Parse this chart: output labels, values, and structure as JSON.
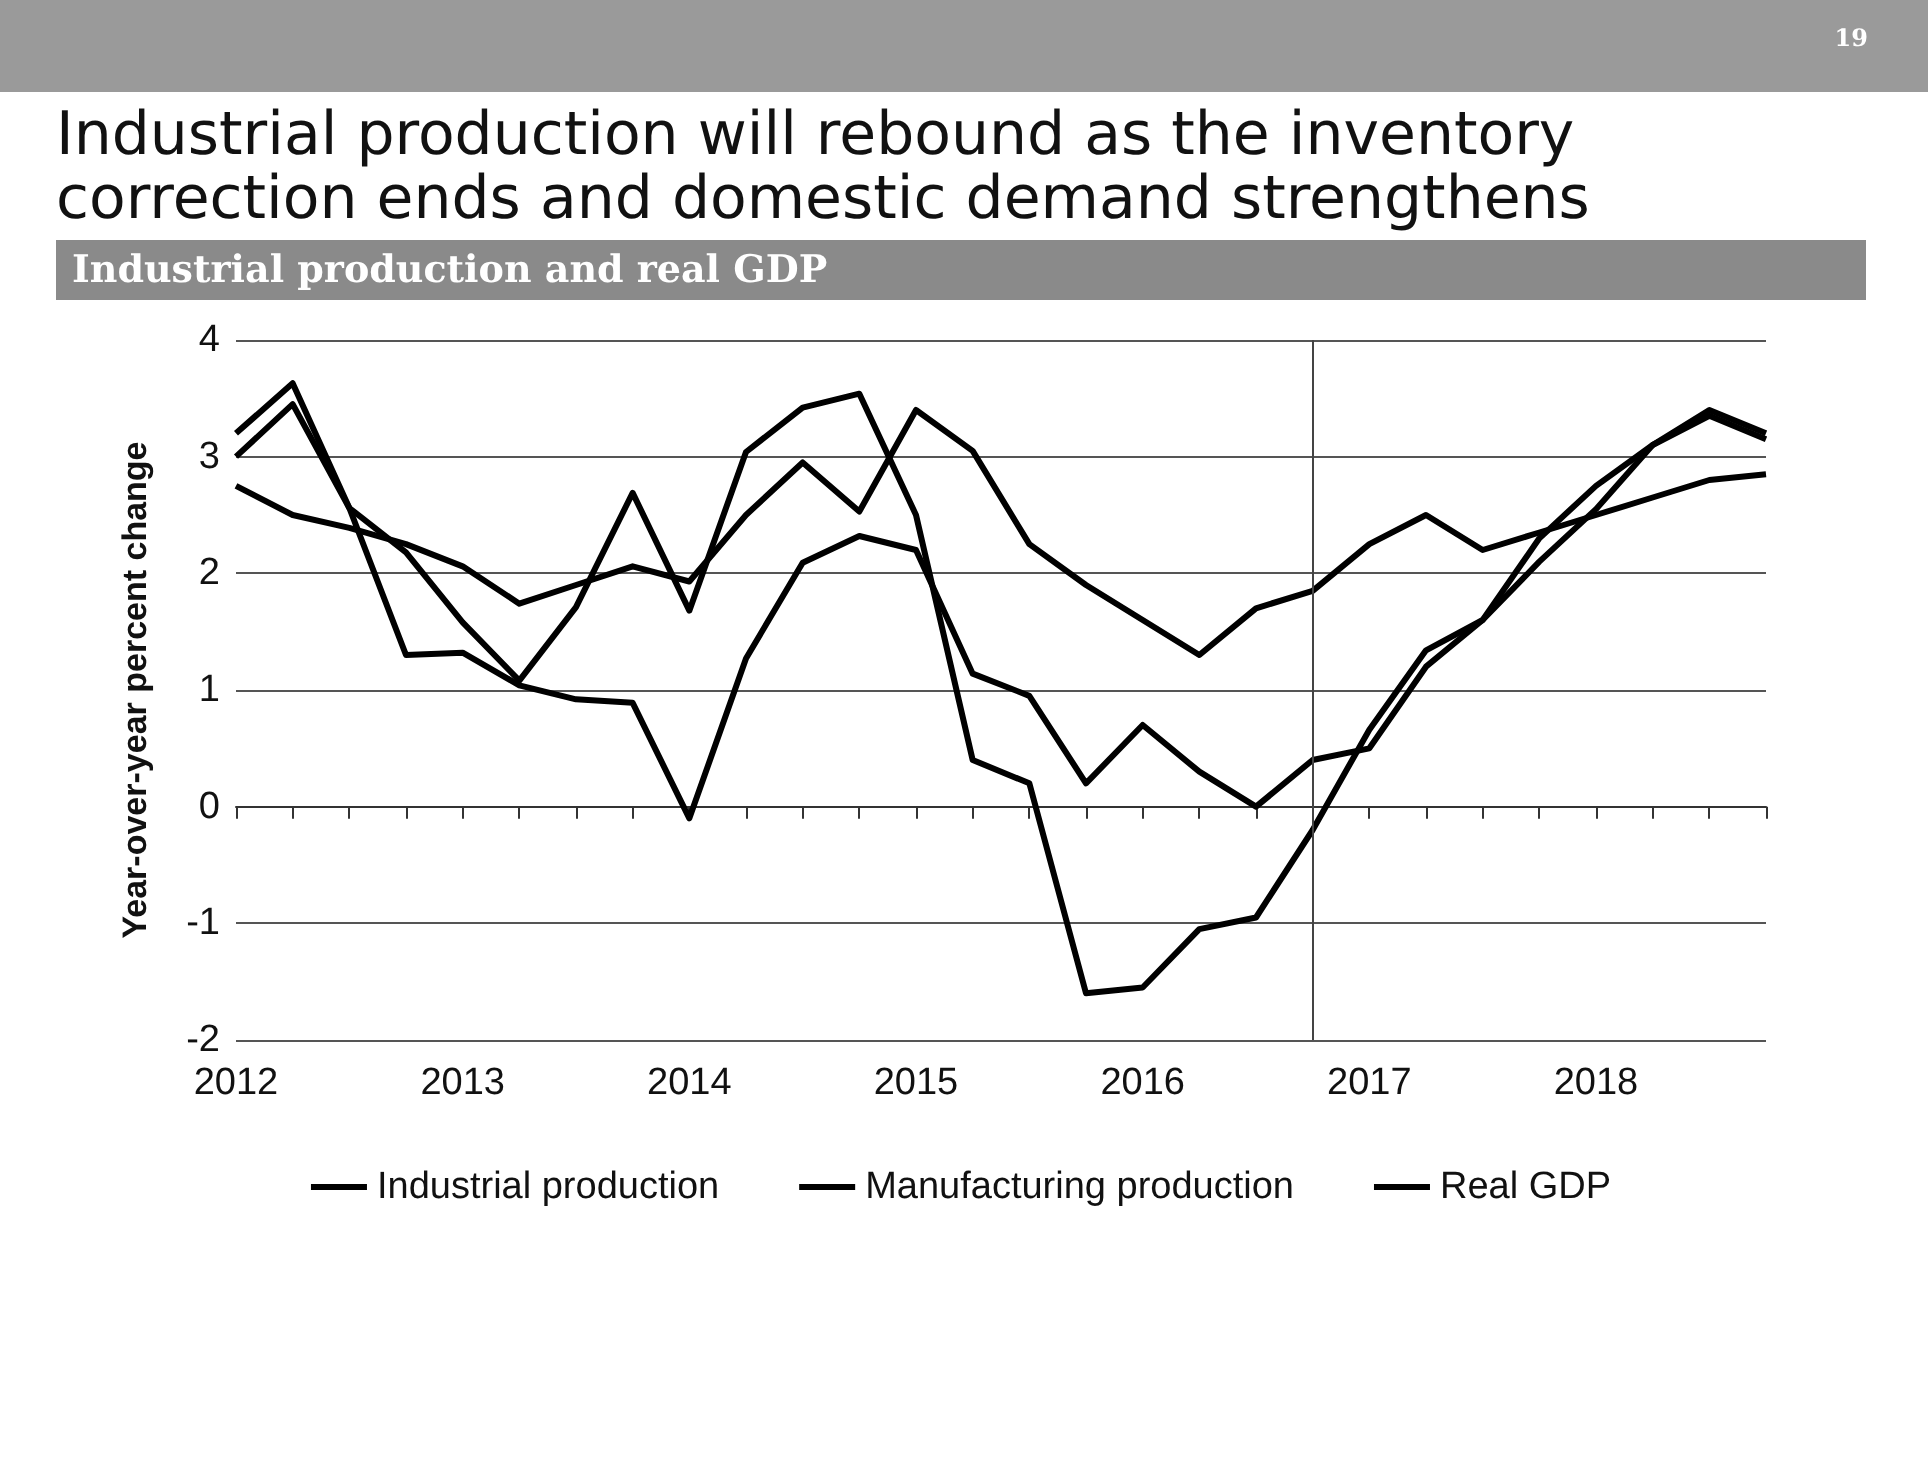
{
  "chart_data": {
    "type": "line",
    "title": "Industrial production will rebound as the inventory correction ends and domestic demand strengthens",
    "subtitle": "Industrial production and real GDP",
    "ylabel": "Year-over-year percent change",
    "annotations": [
      "19"
    ],
    "x": [
      2012,
      2012.25,
      2012.5,
      2012.75,
      2013,
      2013.25,
      2013.5,
      2013.75,
      2014,
      2014.25,
      2014.5,
      2014.75,
      2015,
      2015.25,
      2015.5,
      2015.75,
      2016,
      2016.25,
      2016.5,
      2016.75,
      2017,
      2017.25,
      2017.5,
      2017.75,
      2018,
      2018.25,
      2018.5,
      2018.75
    ],
    "series": [
      {
        "name": "Industrial production",
        "color": "#000000",
        "values": [
          3.2,
          3.63,
          2.56,
          2.18,
          1.58,
          1.08,
          1.71,
          2.69,
          1.68,
          3.04,
          3.42,
          3.54,
          2.5,
          0.4,
          0.2,
          -1.6,
          -1.55,
          -1.05,
          -0.95,
          -0.2,
          0.66,
          1.34,
          1.6,
          2.3,
          2.75,
          3.1,
          3.35,
          3.15
        ]
      },
      {
        "name": "Manufacturing production",
        "color": "#000000",
        "values": [
          3.0,
          3.45,
          2.56,
          1.3,
          1.32,
          1.04,
          0.92,
          0.89,
          -0.1,
          1.27,
          2.09,
          2.32,
          2.2,
          1.14,
          0.95,
          0.2,
          0.7,
          0.3,
          0.0,
          0.4,
          0.5,
          1.2,
          1.6,
          2.1,
          2.55,
          3.1,
          3.4,
          3.2
        ]
      },
      {
        "name": "Real GDP",
        "color": "#000000",
        "values": [
          2.75,
          2.5,
          2.39,
          2.25,
          2.06,
          1.74,
          1.9,
          2.06,
          1.93,
          2.5,
          2.95,
          2.53,
          3.4,
          3.05,
          2.25,
          1.9,
          1.6,
          1.3,
          1.7,
          1.85,
          2.25,
          2.5,
          2.2,
          2.35,
          2.5,
          2.65,
          2.8,
          2.85
        ]
      }
    ],
    "xlim": [
      2012,
      2018.75
    ],
    "xticks": [
      2012,
      {
        "value": 2012.25,
        "label": null
      },
      {
        "value": 2012.5,
        "label": null
      },
      {
        "value": 2012.75,
        "label": null
      },
      2013,
      {
        "value": 2013.25,
        "label": null
      },
      {
        "value": 2013.5,
        "label": null
      },
      {
        "value": 2013.75,
        "label": null
      },
      2014,
      {
        "value": 2014.25,
        "label": null
      },
      {
        "value": 2014.5,
        "label": null
      },
      {
        "value": 2014.75,
        "label": null
      },
      2015,
      {
        "value": 2015.25,
        "label": null
      },
      {
        "value": 2015.5,
        "label": null
      },
      {
        "value": 2015.75,
        "label": null
      },
      2016,
      {
        "value": 2016.25,
        "label": null
      },
      {
        "value": 2016.5,
        "label": null
      },
      {
        "value": 2016.75,
        "label": null
      },
      2017,
      {
        "value": 2017.25,
        "label": null
      },
      {
        "value": 2017.5,
        "label": null
      },
      {
        "value": 2017.75,
        "label": null
      },
      2018,
      {
        "value": 2018.25,
        "label": null
      },
      {
        "value": 2018.5,
        "label": null
      },
      {
        "value": 2018.75,
        "label": null
      }
    ],
    "ylim": [
      -2,
      4
    ],
    "yticks": [
      -2,
      -1,
      0,
      1,
      2,
      3,
      4
    ],
    "ref_lines": [
      {
        "axis": "x",
        "value": 2016.75,
        "color": "#444444"
      }
    ],
    "grid": "y",
    "legend": "bottom"
  }
}
